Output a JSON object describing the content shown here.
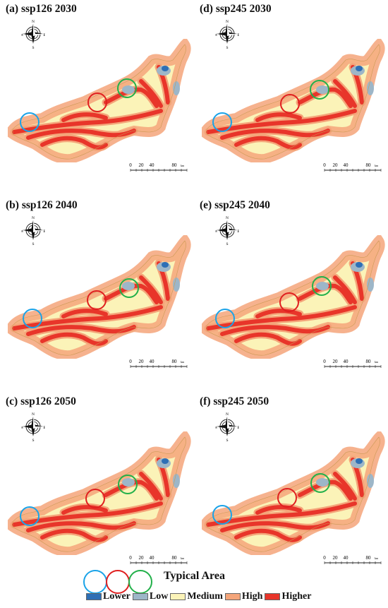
{
  "panels": [
    {
      "title": "(a) ssp126 2030",
      "variant": 0
    },
    {
      "title": "(b) ssp126 2040",
      "variant": 1
    },
    {
      "title": "(c) ssp126 2050",
      "variant": 2
    },
    {
      "title": "(d) ssp245 2030",
      "variant": 0
    },
    {
      "title": "(e) ssp245 2040",
      "variant": 1
    },
    {
      "title": "(f) ssp245 2050",
      "variant": 2
    }
  ],
  "compass": {
    "n": "N",
    "s": "S",
    "e": "E",
    "w": "W"
  },
  "scale": {
    "ticks": [
      "0",
      "20",
      "40",
      "80"
    ],
    "unit": "km"
  },
  "legend": {
    "typical_area_label": "Typical Area",
    "circle_colors": [
      "#1aa3e8",
      "#e02020",
      "#22b04a"
    ],
    "classes": [
      {
        "label": "Lower",
        "color": "#2e6fb5"
      },
      {
        "label": "Low",
        "color": "#9db6c8"
      },
      {
        "label": "Medium",
        "color": "#fbf3b8"
      },
      {
        "label": "High",
        "color": "#f4a57a"
      },
      {
        "label": "Higher",
        "color": "#e8352a"
      }
    ]
  }
}
